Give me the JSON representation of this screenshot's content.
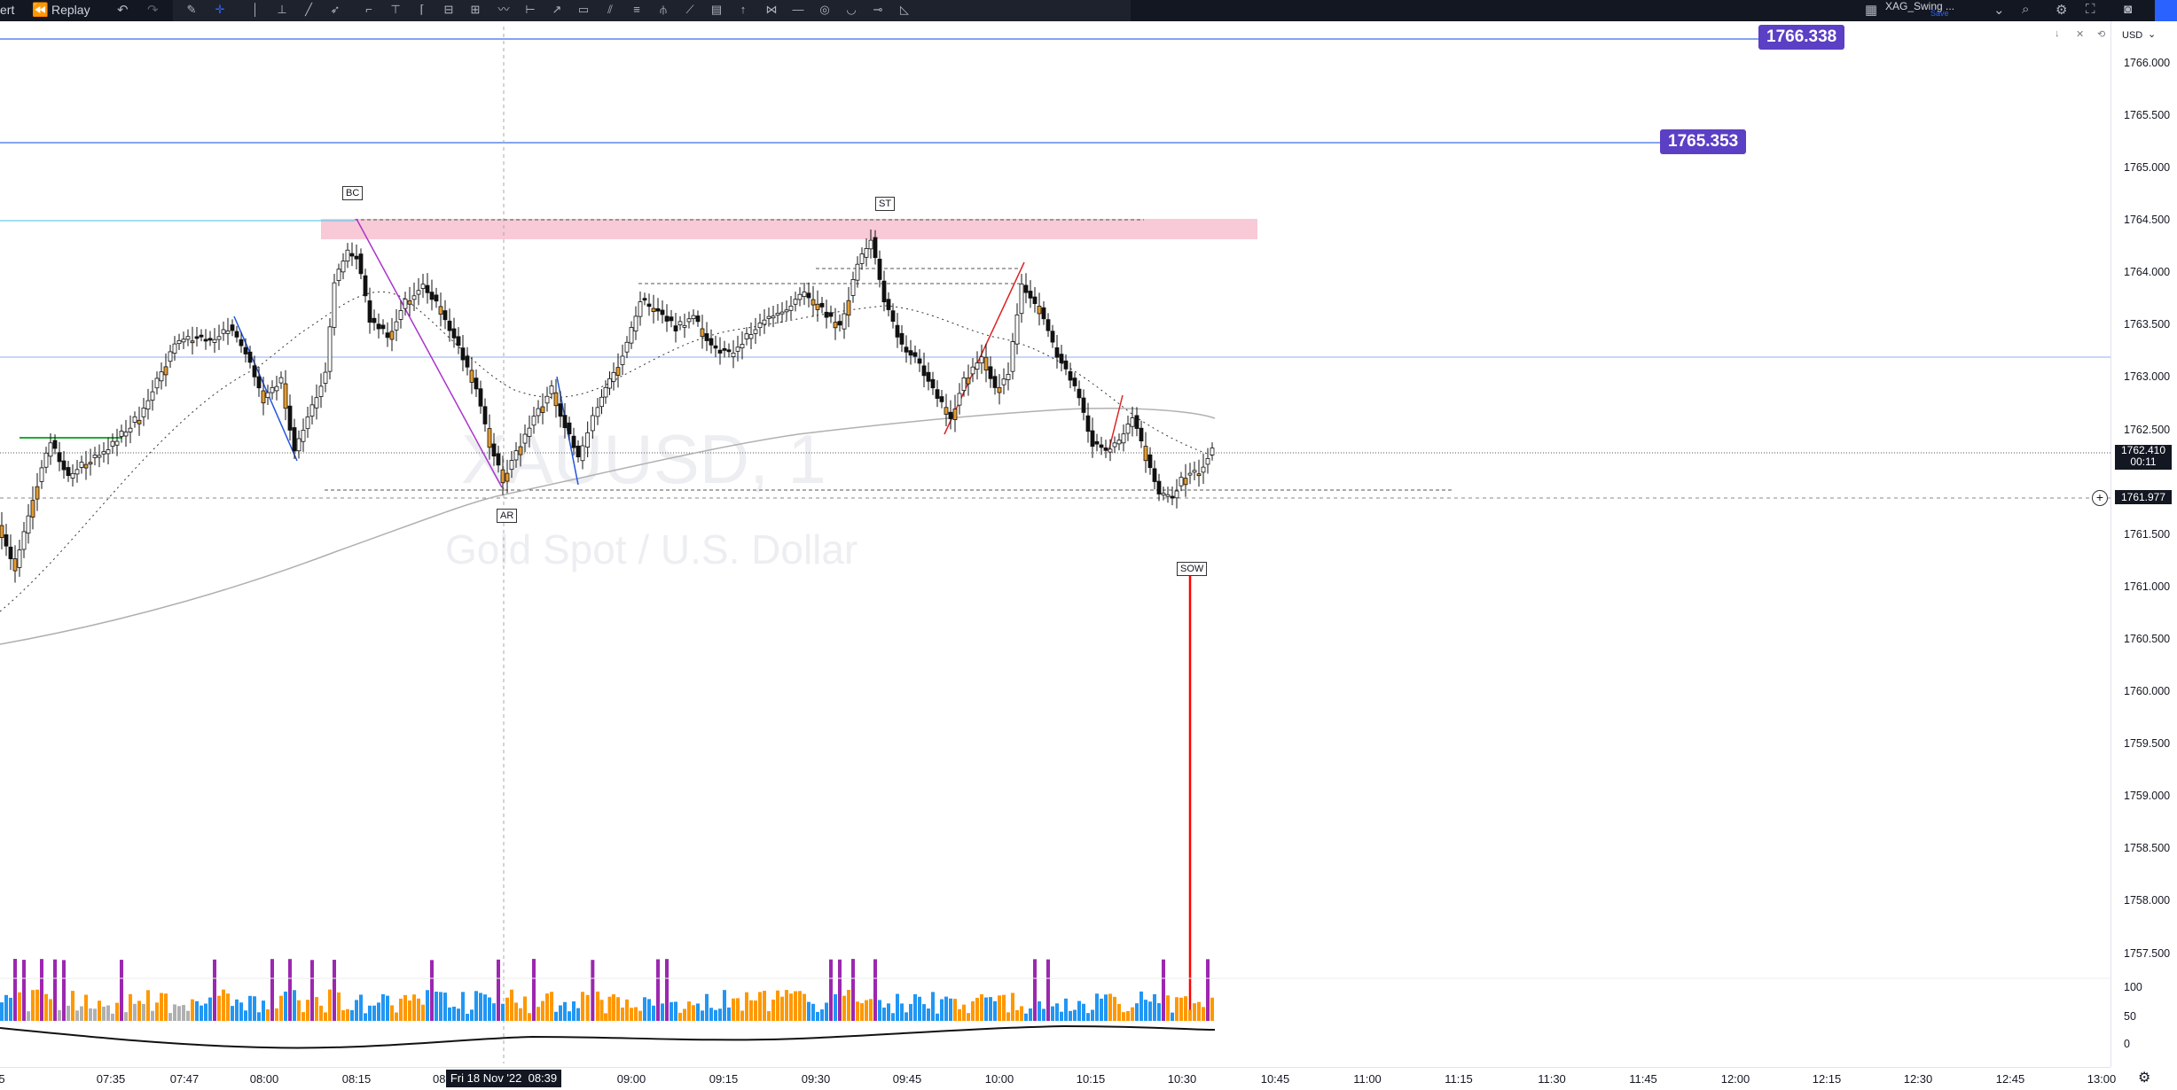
{
  "toolbar": {
    "left_partial": "ert",
    "replay_label": "Replay",
    "layout_name": "XAG_Swing ...",
    "layout_sub": "Save",
    "currency": "USD"
  },
  "watermark": {
    "symbol": "XAUUSD, 1",
    "description": "Gold Spot / U.S. Dollar"
  },
  "price_axis": {
    "labels": [
      "1766.000",
      "1765.500",
      "1765.000",
      "1764.500",
      "1764.000",
      "1763.500",
      "1763.000",
      "1762.500",
      "1761.500",
      "1761.000",
      "1760.500",
      "1760.000",
      "1759.500",
      "1759.000",
      "1758.500",
      "1758.000",
      "1757.500"
    ],
    "volume_labels": [
      "100",
      "50",
      "0"
    ],
    "current_price": "1762.410",
    "countdown": "00:11",
    "crosshair_price": "1761.977"
  },
  "time_axis": {
    "labels": [
      "5",
      "07:35",
      "07:47",
      "08:00",
      "08:15",
      "08:",
      "09:00",
      "09:15",
      "09:30",
      "09:45",
      "10:00",
      "10:15",
      "10:30",
      "10:45",
      "11:00",
      "11:15",
      "11:30",
      "11:45",
      "12:00",
      "12:15",
      "12:30",
      "12:45",
      "13:00"
    ],
    "crosshair_time": "Fri 18 Nov '22  08:39"
  },
  "alerts": [
    {
      "price": "1766.338"
    },
    {
      "price": "1765.353"
    }
  ],
  "wyckoff_labels": [
    "BC",
    "ST",
    "AR",
    "SOW"
  ],
  "colors": {
    "alert_badge": "#5b3fc4",
    "alert_line": "#3a6ee8",
    "bull_vol": "#ff9800",
    "bear_vol": "#2196f3",
    "climax_vol": "#9c27b0",
    "supply_zone": "#f8c9d6",
    "sow_line": "#ff0000"
  }
}
